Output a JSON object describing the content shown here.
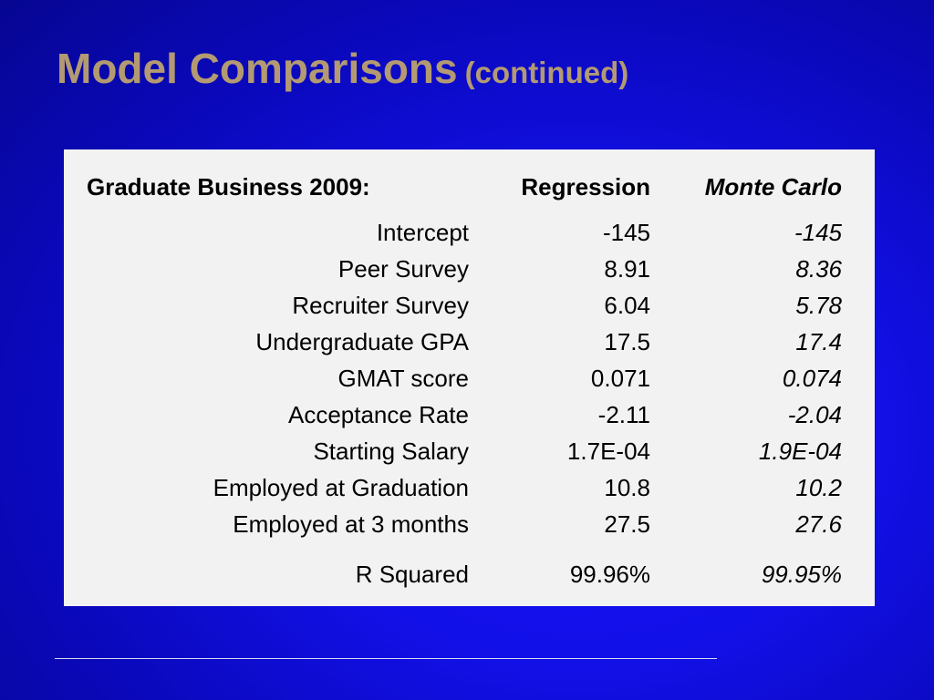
{
  "title": {
    "main": "Model Comparisons",
    "sub": "(continued)"
  },
  "table": {
    "header": {
      "label": "Graduate Business 2009:",
      "regression": "Regression",
      "monte_carlo": "Monte Carlo"
    },
    "rows": [
      {
        "label": "Intercept",
        "regression": "-145",
        "monte_carlo": "-145"
      },
      {
        "label": "Peer Survey",
        "regression": "8.91",
        "monte_carlo": "8.36"
      },
      {
        "label": "Recruiter Survey",
        "regression": "6.04",
        "monte_carlo": "5.78"
      },
      {
        "label": "Undergraduate GPA",
        "regression": "17.5",
        "monte_carlo": "17.4"
      },
      {
        "label": "GMAT score",
        "regression": "0.071",
        "monte_carlo": "0.074"
      },
      {
        "label": "Acceptance Rate",
        "regression": "-2.11",
        "monte_carlo": "-2.04"
      },
      {
        "label": "Starting Salary",
        "regression": "1.7E-04",
        "monte_carlo": "1.9E-04"
      },
      {
        "label": "Employed at Graduation",
        "regression": "10.8",
        "monte_carlo": "10.2"
      },
      {
        "label": "Employed at 3 months",
        "regression": "27.5",
        "monte_carlo": "27.6"
      }
    ],
    "summary": {
      "label": "R Squared",
      "regression": "99.96%",
      "monte_carlo": "99.95%"
    }
  }
}
